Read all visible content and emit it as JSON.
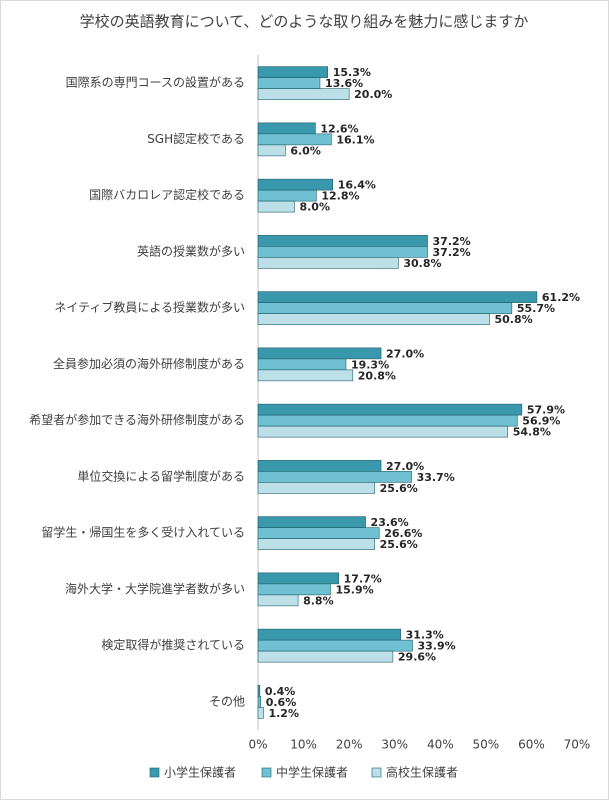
{
  "chart_data": {
    "type": "hbar",
    "title": "学校の英語教育について、どのような取り組みを魅力に感じますか",
    "categories": [
      "国際系の専門コースの設置がある",
      "SGH認定校である",
      "国際バカロレア認定校である",
      "英語の授業数が多い",
      "ネイティブ教員による授業数が多い",
      "全員参加必須の海外研修制度がある",
      "希望者が参加できる海外研修制度がある",
      "単位交換による留学制度がある",
      "留学生・帰国生を多く受け入れている",
      "海外大学・大学院進学者数が多い",
      "検定取得が推奨されている",
      "その他"
    ],
    "series": [
      {
        "name": "小学生保護者",
        "color": "#3a98ac",
        "values": [
          15.3,
          12.6,
          16.4,
          37.2,
          61.2,
          27.0,
          57.9,
          27.0,
          23.6,
          17.7,
          31.3,
          0.4
        ],
        "value_labels": [
          "15.3%",
          "12.6%",
          "16.4%",
          "37.2%",
          "61.2%",
          "27.0%",
          "57.9%",
          "27.0%",
          "23.6%",
          "17.7%",
          "31.3%",
          "0.4%"
        ]
      },
      {
        "name": "中学生保護者",
        "color": "#6fc1d1",
        "values": [
          13.6,
          16.1,
          12.8,
          37.2,
          55.7,
          19.3,
          56.9,
          33.7,
          26.6,
          15.9,
          33.9,
          0.6
        ],
        "value_labels": [
          "13.6%",
          "16.1%",
          "12.8%",
          "37.2%",
          "55.7%",
          "19.3%",
          "56.9%",
          "33.7%",
          "26.6%",
          "15.9%",
          "33.9%",
          "0.6%"
        ]
      },
      {
        "name": "高校生保護者",
        "color": "#bcdfe8",
        "values": [
          20.0,
          6.0,
          8.0,
          30.8,
          50.8,
          20.8,
          54.8,
          25.6,
          25.6,
          8.8,
          29.6,
          1.2
        ],
        "value_labels": [
          "20.0%",
          "6.0%",
          "8.0%",
          "30.8%",
          "50.8%",
          "20.8%",
          "54.8%",
          "25.6%",
          "25.6%",
          "8.8%",
          "29.6%",
          "1.2%"
        ]
      }
    ],
    "xlim": [
      0,
      70
    ],
    "xticks": [
      {
        "value": 0,
        "label": "0%"
      },
      {
        "value": 10,
        "label": "10%"
      },
      {
        "value": 20,
        "label": "20%"
      },
      {
        "value": 30,
        "label": "30%"
      },
      {
        "value": 40,
        "label": "40%"
      },
      {
        "value": 50,
        "label": "50%"
      },
      {
        "value": 60,
        "label": "60%"
      },
      {
        "value": 70,
        "label": "70%"
      }
    ],
    "legend": "bottom"
  }
}
